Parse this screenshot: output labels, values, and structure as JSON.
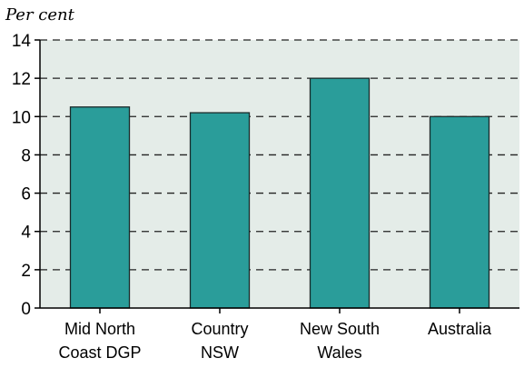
{
  "chart_data": {
    "type": "bar",
    "title": "",
    "ylabel": "Per cent",
    "xlabel": "",
    "categories": [
      [
        "Mid North",
        "Coast DGP"
      ],
      [
        "Country",
        "NSW"
      ],
      [
        "New South",
        "Wales"
      ],
      [
        "Australia"
      ]
    ],
    "values": [
      10.5,
      10.2,
      12.0,
      10.0
    ],
    "ylim": [
      0,
      14
    ],
    "yticks": [
      "0",
      "2",
      "4",
      "6",
      "8",
      "10",
      "12",
      "14"
    ],
    "grid": true,
    "colors": {
      "bar": "#2a9d9a",
      "bar_edge": "#1a2a2a",
      "plot_background": "#e4ece8",
      "grid": "#222222"
    }
  }
}
